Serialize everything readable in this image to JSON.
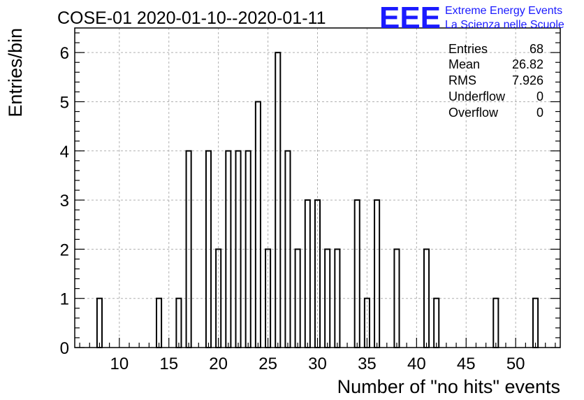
{
  "title": "COSE-01 2020-01-10--2020-01-11",
  "logo": {
    "mark": "EEE",
    "line1": "Extreme Energy Events",
    "line2": "La Scienza nelle Scuole",
    "color": "#1a1aff"
  },
  "stats": [
    {
      "label": "Entries",
      "value": "68"
    },
    {
      "label": "Mean",
      "value": "26.82"
    },
    {
      "label": "RMS",
      "value": "7.926"
    },
    {
      "label": "Underflow",
      "value": "0"
    },
    {
      "label": "Overflow",
      "value": "0"
    }
  ],
  "chart_data": {
    "type": "bar",
    "xlabel": "Number of \"no hits\" events",
    "ylabel": "Entries/bin",
    "xlim": [
      5.5,
      54.5
    ],
    "ylim": [
      0,
      6.5
    ],
    "bin_width": 0.5,
    "x": [
      8,
      14,
      16,
      17,
      19,
      20,
      21,
      22,
      23,
      24,
      25,
      26,
      27,
      28,
      29,
      30,
      31,
      32,
      34,
      35,
      36,
      38,
      41,
      42,
      48,
      52
    ],
    "values": [
      1,
      1,
      1,
      4,
      4,
      2,
      4,
      4,
      4,
      5,
      2,
      6,
      4,
      2,
      3,
      3,
      2,
      2,
      3,
      1,
      3,
      2,
      2,
      1,
      1,
      1
    ],
    "xticks": [
      10,
      15,
      20,
      25,
      30,
      35,
      40,
      45,
      50
    ],
    "yticks": [
      0,
      1,
      2,
      3,
      4,
      5,
      6
    ],
    "grid": true,
    "line_color": "#000000"
  }
}
